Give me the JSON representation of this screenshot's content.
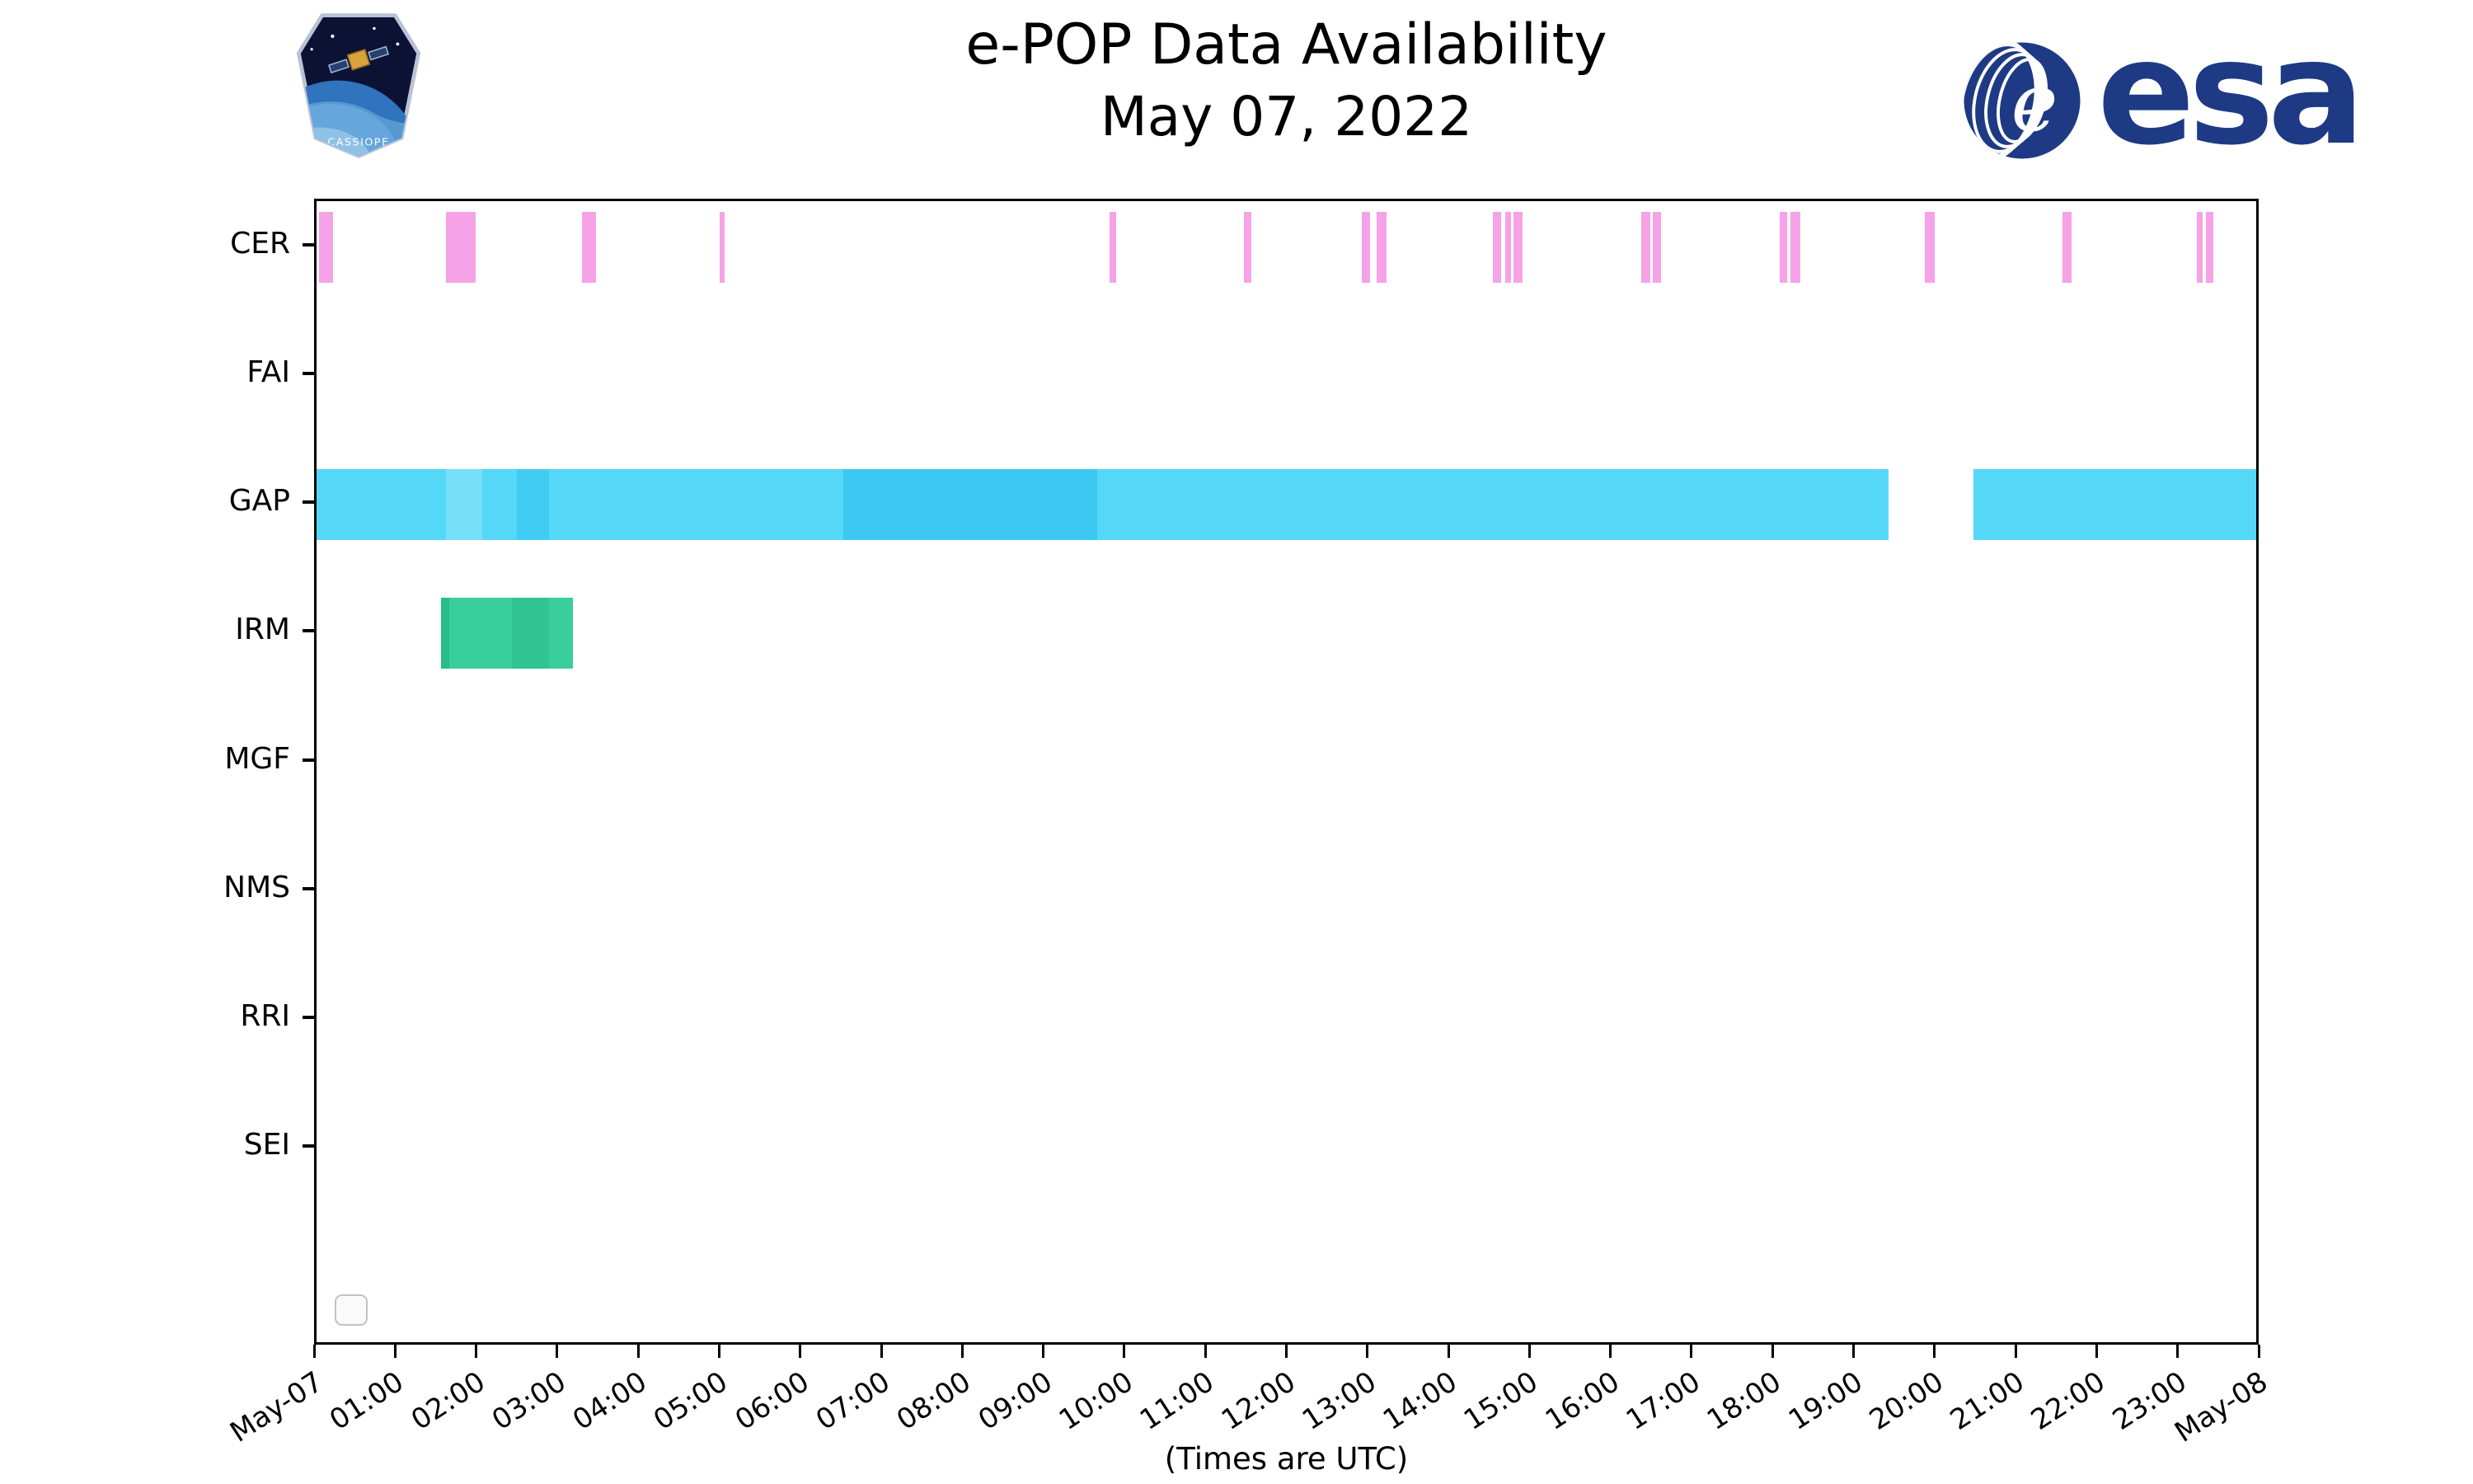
{
  "header": {
    "title_line1": "e-POP Data Availability",
    "title_line2": "May 07, 2022",
    "esa_wordmark": "esa",
    "esa_globe_letter": "e",
    "cassiope_label": "CASSIOPE"
  },
  "chart_data": {
    "type": "timeline",
    "title": "e-POP Data Availability",
    "subtitle": "May 07, 2022",
    "rows": [
      "CER",
      "FAI",
      "GAP",
      "IRM",
      "MGF",
      "NMS",
      "RRI",
      "SEI"
    ],
    "x_axis": {
      "unit": "hours UTC",
      "min_hour": 0,
      "max_hour": 24,
      "tick_labels": [
        "May-07",
        "01:00",
        "02:00",
        "03:00",
        "04:00",
        "05:00",
        "06:00",
        "07:00",
        "08:00",
        "09:00",
        "10:00",
        "11:00",
        "12:00",
        "13:00",
        "14:00",
        "15:00",
        "16:00",
        "17:00",
        "18:00",
        "19:00",
        "20:00",
        "21:00",
        "22:00",
        "23:00",
        "May-08"
      ],
      "caption": "(Times are UTC)"
    },
    "series": [
      {
        "row": "CER",
        "color": "#f6a2e6",
        "intervals": [
          [
            0.03,
            0.2
          ],
          [
            1.6,
            1.97
          ],
          [
            3.28,
            3.46
          ],
          [
            4.99,
            5.05
          ],
          [
            9.81,
            9.89
          ],
          [
            11.47,
            11.57
          ],
          [
            12.93,
            13.04
          ],
          [
            13.12,
            13.24
          ],
          [
            14.55,
            14.66
          ],
          [
            14.71,
            14.78
          ],
          [
            14.81,
            14.92
          ],
          [
            16.39,
            16.5
          ],
          [
            16.53,
            16.64
          ],
          [
            18.1,
            18.2
          ],
          [
            18.24,
            18.36
          ],
          [
            19.9,
            20.02
          ],
          [
            21.6,
            21.72
          ],
          [
            23.27,
            23.34
          ],
          [
            23.38,
            23.47
          ]
        ]
      },
      {
        "row": "GAP",
        "color": "#55d8f7",
        "intervals": [
          [
            0.0,
            19.45
          ],
          [
            20.5,
            24.0
          ]
        ],
        "overlays": [
          {
            "from": 1.6,
            "to": 2.05,
            "color": "#76e0f9"
          },
          {
            "from": 2.48,
            "to": 2.88,
            "color": "#41ccf4"
          },
          {
            "from": 6.52,
            "to": 9.66,
            "color": "#3cc8f3"
          }
        ]
      },
      {
        "row": "IRM",
        "color": "#38cf9c",
        "intervals": [
          [
            1.54,
            3.17
          ]
        ],
        "overlays": [
          {
            "from": 1.54,
            "to": 1.64,
            "color": "#27bd8a"
          },
          {
            "from": 2.42,
            "to": 2.88,
            "color": "#2fc491"
          }
        ]
      }
    ],
    "legend": {
      "visible": true,
      "entries": []
    }
  }
}
